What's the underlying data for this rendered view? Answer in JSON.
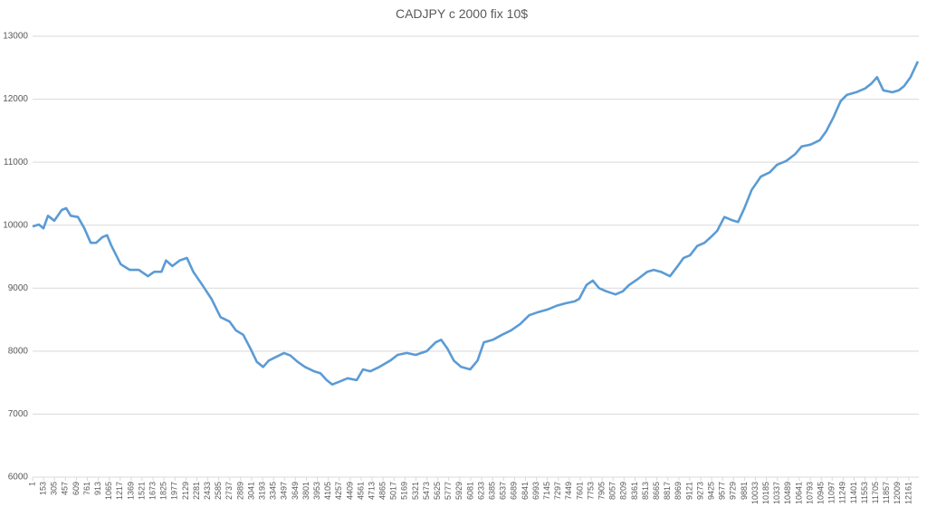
{
  "chart_data": {
    "type": "line",
    "title": "CADJPY c 2000 fix 10$",
    "x": [
      1,
      89,
      152,
      215,
      303,
      404,
      467,
      530,
      631,
      719,
      807,
      883,
      971,
      1034,
      1097,
      1223,
      1349,
      1475,
      1601,
      1689,
      1790,
      1853,
      1941,
      2042,
      2143,
      2231,
      2357,
      2483,
      2609,
      2735,
      2823,
      2924,
      3025,
      3113,
      3201,
      3277,
      3365,
      3491,
      3579,
      3680,
      3781,
      3907,
      3995,
      4083,
      4159,
      4247,
      4373,
      4499,
      4587,
      4688,
      4814,
      4965,
      5066,
      5192,
      5318,
      5469,
      5595,
      5671,
      5759,
      5847,
      5948,
      6074,
      6175,
      6263,
      6389,
      6515,
      6641,
      6767,
      6893,
      7019,
      7145,
      7271,
      7397,
      7523,
      7586,
      7687,
      7775,
      7863,
      7964,
      8090,
      8191,
      8279,
      8405,
      8531,
      8619,
      8720,
      8846,
      8947,
      9035,
      9123,
      9224,
      9325,
      9413,
      9501,
      9602,
      9703,
      9791,
      9879,
      9980,
      10106,
      10232,
      10333,
      10459,
      10585,
      10673,
      10799,
      10925,
      11013,
      11114,
      11215,
      11303,
      11429,
      11555,
      11643,
      11719,
      11807,
      11933,
      12021,
      12097,
      12185,
      12286
    ],
    "series": [
      {
        "name": "CADJPY",
        "color": "#5b9bd5",
        "values": [
          9980,
          10010,
          9950,
          10150,
          10070,
          10240,
          10270,
          10150,
          10130,
          9950,
          9720,
          9720,
          9810,
          9840,
          9670,
          9380,
          9290,
          9290,
          9190,
          9260,
          9260,
          9440,
          9350,
          9440,
          9480,
          9260,
          9050,
          8830,
          8540,
          8470,
          8330,
          8260,
          8040,
          7830,
          7750,
          7850,
          7900,
          7970,
          7930,
          7830,
          7750,
          7680,
          7650,
          7540,
          7470,
          7510,
          7570,
          7540,
          7710,
          7680,
          7750,
          7850,
          7940,
          7970,
          7940,
          8000,
          8140,
          8180,
          8040,
          7850,
          7750,
          7710,
          7850,
          8140,
          8180,
          8260,
          8330,
          8430,
          8570,
          8620,
          8660,
          8720,
          8760,
          8790,
          8830,
          9050,
          9120,
          9000,
          8950,
          8900,
          8950,
          9050,
          9150,
          9260,
          9290,
          9260,
          9190,
          9340,
          9480,
          9520,
          9670,
          9720,
          9810,
          9910,
          10130,
          10080,
          10050,
          10270,
          10560,
          10770,
          10840,
          10960,
          11020,
          11130,
          11250,
          11280,
          11350,
          11490,
          11710,
          11970,
          12070,
          12110,
          12170,
          12250,
          12350,
          12140,
          12110,
          12140,
          12210,
          12350,
          12600
        ]
      }
    ],
    "xlim": [
      1,
      12300
    ],
    "xticks": [
      1,
      153,
      305,
      457,
      609,
      761,
      913,
      1065,
      1217,
      1369,
      1521,
      1673,
      1825,
      1977,
      2129,
      2281,
      2433,
      2585,
      2737,
      2889,
      3041,
      3193,
      3345,
      3497,
      3649,
      3801,
      3953,
      4105,
      4257,
      4409,
      4561,
      4713,
      4865,
      5017,
      5169,
      5321,
      5473,
      5625,
      5777,
      5929,
      6081,
      6233,
      6385,
      6537,
      6689,
      6841,
      6993,
      7145,
      7297,
      7449,
      7601,
      7753,
      7905,
      8057,
      8209,
      8361,
      8513,
      8665,
      8817,
      8969,
      9121,
      9273,
      9425,
      9577,
      9729,
      9881,
      10033,
      10185,
      10337,
      10489,
      10641,
      10793,
      10945,
      11097,
      11249,
      11401,
      11553,
      11705,
      11857,
      12009,
      12161
    ],
    "ylim": [
      6000,
      13000
    ],
    "yticks": [
      6000,
      7000,
      8000,
      9000,
      10000,
      11000,
      12000,
      13000
    ],
    "grid": true
  }
}
